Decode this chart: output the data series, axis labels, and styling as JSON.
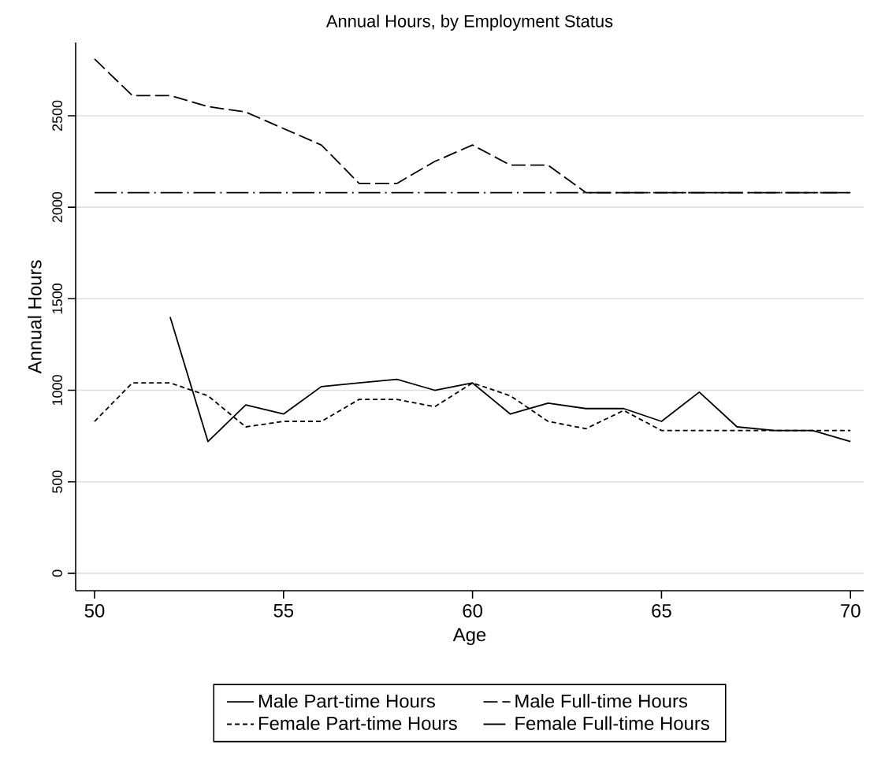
{
  "chart_data": {
    "type": "line",
    "title": "Annual Hours, by Employment Status",
    "xlabel": "Age",
    "ylabel": "Annual Hours",
    "x": [
      50,
      51,
      52,
      53,
      54,
      55,
      56,
      57,
      58,
      59,
      60,
      61,
      62,
      63,
      64,
      65,
      66,
      67,
      68,
      69,
      70
    ],
    "series": [
      {
        "name": "Male Part-time Hours",
        "color": "#000000",
        "line_style": "solid",
        "values": [
          null,
          null,
          1400,
          720,
          920,
          870,
          1020,
          1040,
          1060,
          1000,
          1040,
          870,
          930,
          900,
          900,
          830,
          990,
          800,
          780,
          780,
          720
        ]
      },
      {
        "name": "Male Full-time Hours",
        "color": "#000000",
        "line_style": "dashed",
        "values": [
          2810,
          2610,
          2610,
          2550,
          2520,
          2430,
          2340,
          2130,
          2130,
          2250,
          2340,
          2230,
          2230,
          2080,
          2080,
          2080,
          2080,
          2080,
          2080,
          2080,
          2080
        ]
      },
      {
        "name": "Female Part-time Hours",
        "color": "#000000",
        "line_style": "dotted",
        "values": [
          830,
          1040,
          1040,
          970,
          800,
          830,
          830,
          950,
          950,
          910,
          1040,
          970,
          830,
          790,
          890,
          780,
          780,
          780,
          780,
          780,
          780
        ]
      },
      {
        "name": "Female Full-time Hours",
        "color": "#000000",
        "line_style": "dashdot",
        "values": [
          2080,
          2080,
          2080,
          2080,
          2080,
          2080,
          2080,
          2080,
          2080,
          2080,
          2080,
          2080,
          2080,
          2080,
          2080,
          2080,
          2080,
          2080,
          2080,
          2080,
          2080
        ]
      }
    ],
    "xlim": [
      49.5,
      70.35
    ],
    "ylim": [
      -95,
      2900
    ],
    "xticks": [
      50,
      55,
      60,
      65,
      70
    ],
    "yticks": [
      0,
      500,
      1000,
      1500,
      2000,
      2500
    ],
    "grid": "y",
    "legend": "bottom",
    "marker": "none"
  }
}
